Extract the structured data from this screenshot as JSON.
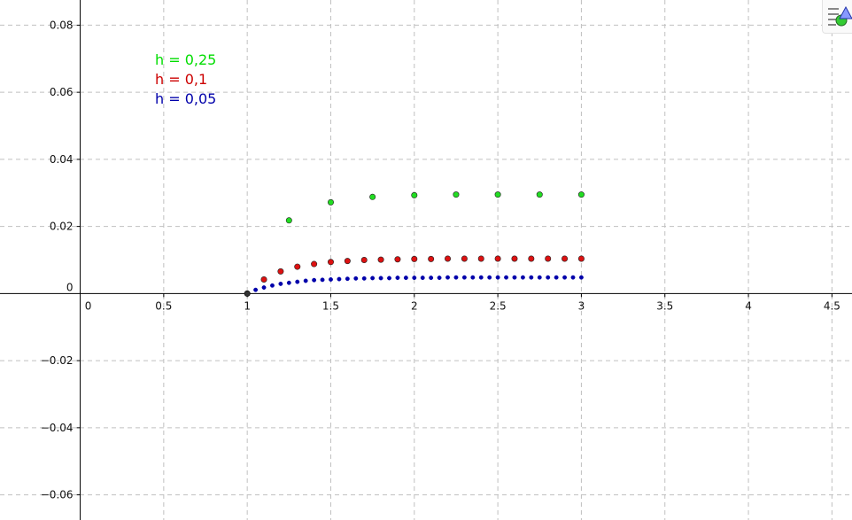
{
  "chart_data": {
    "type": "scatter",
    "xlim": [
      -0.48,
      4.62
    ],
    "ylim": [
      -0.0675,
      0.0875
    ],
    "grid": true,
    "x_ticks": [
      {
        "value": 0,
        "label": "0"
      },
      {
        "value": 0.5,
        "label": "0.5"
      },
      {
        "value": 1,
        "label": "1"
      },
      {
        "value": 1.5,
        "label": "1.5"
      },
      {
        "value": 2,
        "label": "2"
      },
      {
        "value": 2.5,
        "label": "2.5"
      },
      {
        "value": 3,
        "label": "3"
      },
      {
        "value": 3.5,
        "label": "3.5"
      },
      {
        "value": 4,
        "label": "4"
      },
      {
        "value": 4.5,
        "label": "4.5"
      }
    ],
    "y_ticks": [
      {
        "value": 0.08,
        "label": "0.08"
      },
      {
        "value": 0.06,
        "label": "0.06"
      },
      {
        "value": 0.04,
        "label": "0.04"
      },
      {
        "value": 0.02,
        "label": "0.02"
      },
      {
        "value": 0,
        "label": "0"
      },
      {
        "value": -0.02,
        "label": "−0.02"
      },
      {
        "value": -0.04,
        "label": "−0.04"
      },
      {
        "value": -0.06,
        "label": "−0.06"
      }
    ],
    "legend_position": "top-left",
    "series": [
      {
        "name": "h = 0,25",
        "color": "#00dd00",
        "dot_color": "#22dd22",
        "x": [
          1.25,
          1.5,
          1.75,
          2.0,
          2.25,
          2.5,
          2.75,
          3.0
        ],
        "y": [
          0.0218,
          0.0272,
          0.0288,
          0.0293,
          0.0295,
          0.0295,
          0.0295,
          0.0295
        ]
      },
      {
        "name": "h = 0,1",
        "color": "#cc0000",
        "dot_color": "#dd1111",
        "x": [
          1.1,
          1.2,
          1.3,
          1.4,
          1.5,
          1.6,
          1.7,
          1.8,
          1.9,
          2.0,
          2.1,
          2.2,
          2.3,
          2.4,
          2.5,
          2.6,
          2.7,
          2.8,
          2.9,
          3.0
        ],
        "y": [
          0.0042,
          0.0066,
          0.008,
          0.0088,
          0.0094,
          0.0097,
          0.01,
          0.0101,
          0.0102,
          0.0103,
          0.0103,
          0.0104,
          0.0104,
          0.0104,
          0.0104,
          0.0104,
          0.0104,
          0.0104,
          0.0104,
          0.0104
        ]
      },
      {
        "name": "h = 0,05",
        "color": "#0000aa",
        "dot_color": "#0000aa",
        "x": [
          1.0,
          1.05,
          1.1,
          1.15,
          1.2,
          1.25,
          1.3,
          1.35,
          1.4,
          1.45,
          1.5,
          1.55,
          1.6,
          1.65,
          1.7,
          1.75,
          1.8,
          1.85,
          1.9,
          1.95,
          2.0,
          2.05,
          2.1,
          2.15,
          2.2,
          2.25,
          2.3,
          2.35,
          2.4,
          2.45,
          2.5,
          2.55,
          2.6,
          2.65,
          2.7,
          2.75,
          2.8,
          2.85,
          2.9,
          2.95,
          3.0
        ],
        "y": [
          0.0,
          0.0011,
          0.0018,
          0.0024,
          0.0029,
          0.0032,
          0.0035,
          0.0038,
          0.004,
          0.0041,
          0.0042,
          0.0043,
          0.0044,
          0.0045,
          0.0045,
          0.0046,
          0.0046,
          0.0046,
          0.0047,
          0.0047,
          0.0047,
          0.0047,
          0.0047,
          0.0047,
          0.0048,
          0.0048,
          0.0048,
          0.0048,
          0.0048,
          0.0048,
          0.0048,
          0.0048,
          0.0048,
          0.0048,
          0.0048,
          0.0048,
          0.0048,
          0.0048,
          0.0048,
          0.0048,
          0.0048
        ]
      }
    ],
    "origin_point": {
      "x": 1.0,
      "y": 0.0,
      "color": "#333333"
    }
  },
  "ui": {
    "style_bar_toggle_icon": "style-bar-toggle-icon"
  }
}
